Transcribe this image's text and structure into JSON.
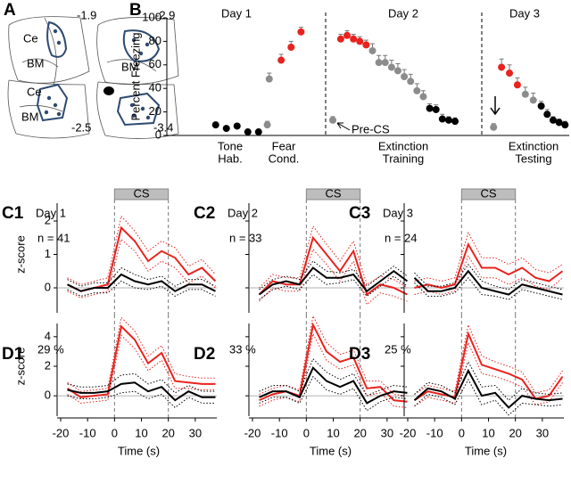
{
  "anatomy": {
    "panel": "A",
    "levels": [
      "-1.9",
      "-2.9",
      "-2.5",
      "-3.4"
    ],
    "regions": [
      "Ce",
      "BM",
      "BM",
      "Ce",
      "BM"
    ]
  },
  "chart_data": [
    {
      "type": "scatter",
      "panel": "B",
      "ylabel": "Percent Freezing",
      "days": [
        "Day 1",
        "Day 2",
        "Day 3"
      ],
      "groups": [
        [
          "Tone",
          "Hab."
        ],
        [
          "Fear",
          "Cond."
        ],
        [
          "Extinction",
          "Training"
        ],
        [
          "Extinction",
          "Testing"
        ]
      ],
      "annotation": "Pre-CS",
      "xlim": [
        0,
        100
      ],
      "ylim": [
        0,
        100
      ],
      "yticks": [
        0,
        20,
        40,
        60,
        80,
        100
      ],
      "series": [
        {
          "color": "#000000",
          "x": [
            10.5,
            13.2,
            15.9,
            18.6,
            21.3,
            64.4,
            66,
            67.6,
            69.2,
            70.8,
            92.5,
            94,
            95.5,
            97,
            98.5
          ],
          "values": [
            9,
            6,
            8,
            3,
            3,
            23,
            22,
            14,
            13,
            12,
            25,
            18,
            13,
            11,
            9
          ],
          "errors": [
            1,
            1,
            1,
            1,
            1,
            4,
            4,
            4,
            3,
            3,
            4,
            4,
            3,
            3,
            3
          ]
        },
        {
          "color": "#8c8c8c",
          "x": [
            23.5,
            24,
            40,
            50,
            51.6,
            53.2,
            54.8,
            56.4,
            58,
            59.6,
            61.2,
            62.8,
            80.5,
            88.5,
            90.5
          ],
          "values": [
            9,
            48,
            13,
            72,
            62,
            62,
            58,
            55,
            50,
            46,
            38,
            33,
            7,
            35,
            30
          ],
          "errors": [
            3,
            5,
            3,
            6,
            6,
            6,
            6,
            6,
            6,
            6,
            6,
            5,
            3,
            6,
            6
          ]
        },
        {
          "color": "#e8231f",
          "x": [
            27,
            29.5,
            32,
            42,
            43.6,
            45.2,
            46.8,
            48.4,
            82.5,
            84.5,
            86.5
          ],
          "values": [
            64,
            75,
            88,
            82,
            85,
            82,
            80,
            77,
            58,
            53,
            43
          ],
          "errors": [
            5,
            5,
            4,
            4,
            4,
            4,
            4,
            4,
            7,
            7,
            6
          ]
        }
      ]
    },
    {
      "type": "line",
      "panel": "C1",
      "title": "Day 1",
      "annotation": "n = 41",
      "cs_label": "CS",
      "cs_range": [
        0,
        20
      ],
      "ylabel": "z-score",
      "show_ytick_labels": true,
      "show_xtick_labels": false,
      "x": [
        -17.5,
        -12.5,
        -7.5,
        -2.5,
        2.5,
        7.5,
        12.5,
        17.5,
        22.5,
        27.5,
        32.5,
        37.5
      ],
      "xlim": [
        -20,
        38
      ],
      "xticks": [
        -20,
        -10,
        0,
        10,
        20,
        30
      ],
      "ylim": [
        -0.8,
        2.8
      ],
      "yticks": [
        0,
        1,
        2
      ],
      "series": [
        {
          "color": "#e8231f",
          "values": [
            0.1,
            -0.1,
            0.0,
            0.1,
            1.8,
            1.4,
            0.8,
            1.1,
            0.9,
            0.4,
            0.6,
            0.2
          ],
          "errors": [
            0.2,
            0.2,
            0.2,
            0.2,
            0.35,
            0.3,
            0.3,
            0.3,
            0.3,
            0.25,
            0.25,
            0.2
          ]
        },
        {
          "color": "#000000",
          "values": [
            0.1,
            -0.1,
            0.0,
            0.0,
            0.4,
            0.2,
            0.1,
            0.2,
            -0.1,
            0.1,
            0.1,
            -0.1
          ],
          "errors": [
            0.15,
            0.15,
            0.15,
            0.15,
            0.2,
            0.2,
            0.15,
            0.15,
            0.15,
            0.15,
            0.15,
            0.15
          ]
        }
      ]
    },
    {
      "type": "line",
      "panel": "C2",
      "title": "Day 2",
      "annotation": "n = 33",
      "cs_label": "CS",
      "cs_range": [
        0,
        20
      ],
      "show_ytick_labels": false,
      "show_xtick_labels": false,
      "x": [
        -17.5,
        -12.5,
        -7.5,
        -2.5,
        2.5,
        7.5,
        12.5,
        17.5,
        22.5,
        27.5,
        32.5,
        37.5
      ],
      "xlim": [
        -20,
        38
      ],
      "xticks": [
        -20,
        -10,
        0,
        10,
        20,
        30
      ],
      "ylim": [
        -0.8,
        2.8
      ],
      "yticks": [
        0,
        1,
        2
      ],
      "series": [
        {
          "color": "#e8231f",
          "values": [
            -0.2,
            0.2,
            0.1,
            0.1,
            1.5,
            1.0,
            0.5,
            1.1,
            -0.2,
            0.1,
            0.0,
            -0.2
          ],
          "errors": [
            0.2,
            0.2,
            0.2,
            0.2,
            0.35,
            0.3,
            0.3,
            0.3,
            0.3,
            0.25,
            0.25,
            0.2
          ]
        },
        {
          "color": "#000000",
          "values": [
            -0.2,
            0.1,
            0.2,
            0.1,
            0.6,
            0.3,
            0.3,
            0.4,
            -0.1,
            0.2,
            0.5,
            0.2
          ],
          "errors": [
            0.15,
            0.15,
            0.15,
            0.15,
            0.2,
            0.2,
            0.15,
            0.15,
            0.15,
            0.15,
            0.15,
            0.15
          ]
        }
      ]
    },
    {
      "type": "line",
      "panel": "C3",
      "title": "Day 3",
      "annotation": "n = 24",
      "cs_label": "CS",
      "cs_range": [
        0,
        20
      ],
      "show_ytick_labels": false,
      "show_xtick_labels": false,
      "x": [
        -17.5,
        -12.5,
        -7.5,
        -2.5,
        2.5,
        7.5,
        12.5,
        17.5,
        22.5,
        27.5,
        32.5,
        37.5
      ],
      "xlim": [
        -20,
        38
      ],
      "xticks": [
        -20,
        -10,
        0,
        10,
        20,
        30
      ],
      "ylim": [
        -0.8,
        2.8
      ],
      "yticks": [
        0,
        1,
        2
      ],
      "series": [
        {
          "color": "#e8231f",
          "values": [
            0.0,
            0.1,
            0.0,
            0.1,
            1.3,
            0.6,
            0.6,
            0.4,
            0.6,
            0.3,
            0.2,
            0.5
          ],
          "errors": [
            0.2,
            0.2,
            0.2,
            0.2,
            0.35,
            0.3,
            0.3,
            0.3,
            0.3,
            0.25,
            0.25,
            0.2
          ]
        },
        {
          "color": "#000000",
          "values": [
            0.3,
            -0.1,
            -0.1,
            0.0,
            0.5,
            0.0,
            -0.1,
            -0.2,
            0.1,
            0.0,
            -0.1,
            -0.2
          ],
          "errors": [
            0.15,
            0.15,
            0.15,
            0.15,
            0.2,
            0.2,
            0.15,
            0.15,
            0.15,
            0.15,
            0.15,
            0.15
          ]
        }
      ]
    },
    {
      "type": "line",
      "panel": "D1",
      "annotation": "29 %",
      "cs_range": [
        0,
        20
      ],
      "ylabel": "z-score",
      "xlabel": "Time (s)",
      "show_ytick_labels": true,
      "show_xtick_labels": true,
      "x": [
        -17.5,
        -12.5,
        -7.5,
        -2.5,
        2.5,
        7.5,
        12.5,
        17.5,
        22.5,
        27.5,
        32.5,
        37.5
      ],
      "xlim": [
        -20,
        38
      ],
      "xticks": [
        -20,
        -10,
        0,
        10,
        20,
        30
      ],
      "ylim": [
        -1.5,
        5.5
      ],
      "yticks": [
        0,
        2,
        4
      ],
      "series": [
        {
          "color": "#e8231f",
          "values": [
            0.5,
            -0.1,
            0.0,
            0.1,
            4.7,
            3.8,
            2.2,
            2.9,
            1.0,
            0.9,
            0.8,
            0.8
          ],
          "errors": [
            0.4,
            0.4,
            0.4,
            0.4,
            0.6,
            0.6,
            0.5,
            0.5,
            0.5,
            0.4,
            0.4,
            0.4
          ]
        },
        {
          "color": "#000000",
          "values": [
            0.4,
            0.2,
            0.2,
            0.3,
            0.8,
            0.9,
            0.3,
            0.6,
            -0.3,
            0.3,
            -0.1,
            -0.1
          ],
          "errors": [
            0.4,
            0.4,
            0.4,
            0.4,
            0.6,
            0.6,
            0.5,
            0.5,
            0.5,
            0.4,
            0.4,
            0.4
          ]
        }
      ]
    },
    {
      "type": "line",
      "panel": "D2",
      "annotation": "33 %",
      "cs_range": [
        0,
        20
      ],
      "xlabel": "Time (s)",
      "show_ytick_labels": false,
      "show_xtick_labels": true,
      "x": [
        -17.5,
        -12.5,
        -7.5,
        -2.5,
        2.5,
        7.5,
        12.5,
        17.5,
        22.5,
        27.5,
        32.5,
        37.5
      ],
      "xlim": [
        -20,
        38
      ],
      "xticks": [
        -20,
        -10,
        0,
        10,
        20,
        30
      ],
      "ylim": [
        -1.5,
        5.5
      ],
      "yticks": [
        0,
        2,
        4
      ],
      "series": [
        {
          "color": "#e8231f",
          "values": [
            -0.3,
            0.1,
            0.3,
            0.0,
            4.8,
            3.0,
            2.3,
            2.6,
            0.5,
            0.6,
            -0.3,
            -0.4
          ],
          "errors": [
            0.4,
            0.4,
            0.4,
            0.4,
            0.6,
            0.6,
            0.5,
            0.5,
            0.5,
            0.4,
            0.4,
            0.4
          ]
        },
        {
          "color": "#000000",
          "values": [
            -0.1,
            0.3,
            0.3,
            -0.1,
            1.9,
            1.0,
            0.6,
            1.0,
            -0.5,
            0.0,
            0.3,
            0.2
          ],
          "errors": [
            0.4,
            0.4,
            0.4,
            0.4,
            0.6,
            0.6,
            0.5,
            0.5,
            0.5,
            0.4,
            0.4,
            0.4
          ]
        }
      ]
    },
    {
      "type": "line",
      "panel": "D3",
      "annotation": "25 %",
      "cs_range": [
        0,
        20
      ],
      "xlabel": "Time (s)",
      "show_ytick_labels": false,
      "show_xtick_labels": true,
      "x": [
        -17.5,
        -12.5,
        -7.5,
        -2.5,
        2.5,
        7.5,
        12.5,
        17.5,
        22.5,
        27.5,
        32.5,
        37.5
      ],
      "xlim": [
        -20,
        38
      ],
      "xticks": [
        -20,
        -10,
        0,
        10,
        20,
        30
      ],
      "ylim": [
        -1.5,
        5.5
      ],
      "yticks": [
        0,
        2,
        4
      ],
      "series": [
        {
          "color": "#e8231f",
          "values": [
            -0.3,
            0.3,
            0.1,
            -0.1,
            4.2,
            2.1,
            1.8,
            1.5,
            1.1,
            -0.2,
            0.0,
            1.3
          ],
          "errors": [
            0.4,
            0.4,
            0.4,
            0.4,
            0.6,
            0.6,
            0.5,
            0.5,
            0.5,
            0.4,
            0.4,
            0.4
          ]
        },
        {
          "color": "#000000",
          "values": [
            -0.3,
            0.5,
            0.3,
            -0.2,
            1.7,
            0.0,
            0.2,
            -0.8,
            0.0,
            -0.2,
            -0.3,
            -0.2
          ],
          "errors": [
            0.4,
            0.4,
            0.4,
            0.4,
            0.6,
            0.6,
            0.5,
            0.5,
            0.5,
            0.4,
            0.4,
            0.4
          ]
        }
      ]
    }
  ]
}
